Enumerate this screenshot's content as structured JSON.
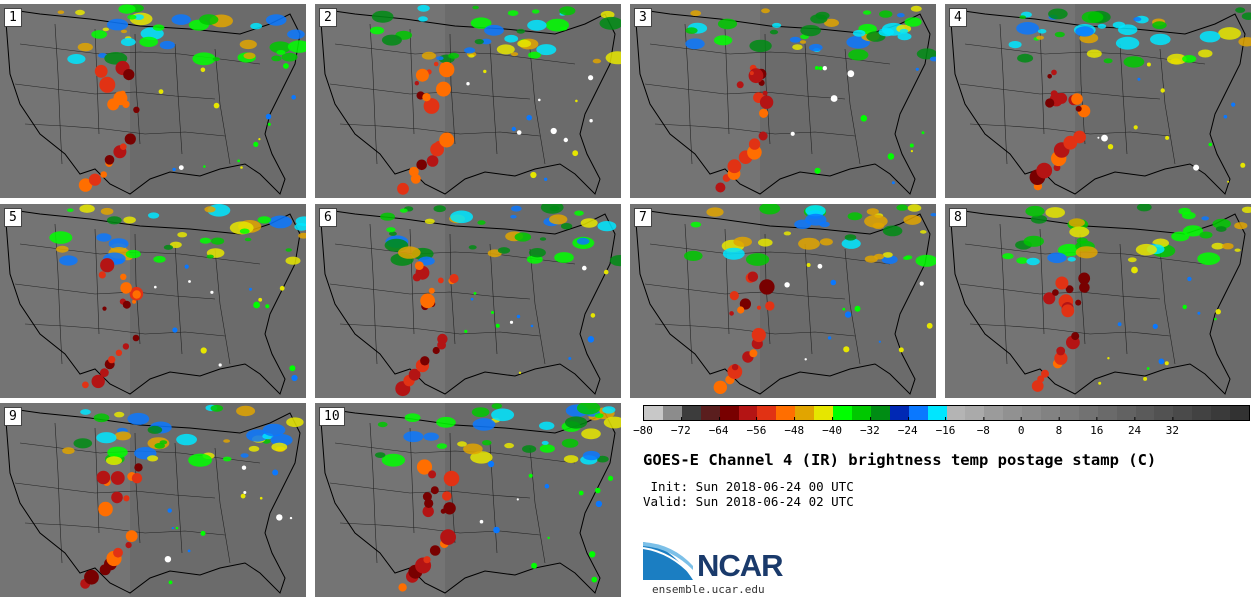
{
  "panels": [
    "1",
    "2",
    "3",
    "4",
    "5",
    "6",
    "7",
    "8",
    "9",
    "10"
  ],
  "colorbar": {
    "colors": [
      "#c8c8c8",
      "#8c8c8c",
      "#3c3c3c",
      "#5a1e1e",
      "#780000",
      "#b41414",
      "#e13214",
      "#ff6e00",
      "#e1a500",
      "#e6e600",
      "#00ff00",
      "#00c800",
      "#008c14",
      "#0028b4",
      "#0a78ff",
      "#00e6ff",
      "#b4b4b4",
      "#aaaaaa",
      "#9b9b9b",
      "#919191",
      "#8a8a8a",
      "#828282",
      "#7a7a7a",
      "#727272",
      "#6a6a6a",
      "#626262",
      "#5a5a5a",
      "#525252",
      "#4a4a4a",
      "#424242",
      "#3a3a3a",
      "#323232"
    ],
    "ticks": [
      "−80",
      "−72",
      "−64",
      "−56",
      "−48",
      "−40",
      "−32",
      "−24",
      "−16",
      "−8",
      "0",
      "8",
      "16",
      "24",
      "32"
    ]
  },
  "title": "GOES-E Channel 4 (IR) brightness temp postage stamp (C)",
  "init": " Init: Sun 2018-06-24 00 UTC",
  "valid": "Valid: Sun 2018-06-24 02 UTC",
  "logo": {
    "text": "NCAR",
    "site": "ensemble.ucar.edu"
  }
}
